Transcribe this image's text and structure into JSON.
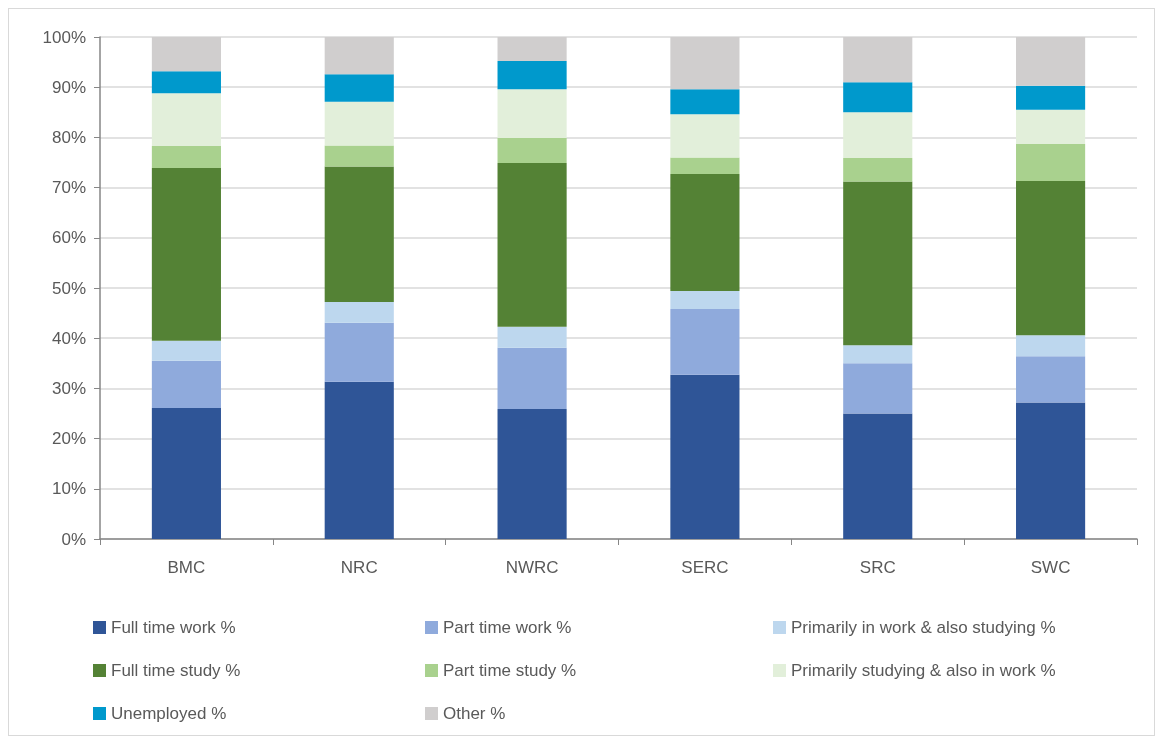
{
  "chart_data": {
    "type": "bar",
    "stacked": true,
    "categories": [
      "BMC",
      "NRC",
      "NWRC",
      "SERC",
      "SRC",
      "SWC"
    ],
    "series": [
      {
        "name": "Full time work %",
        "color": "#2f5597",
        "values": [
          26.1,
          31.3,
          25.9,
          32.7,
          25.0,
          27.2
        ]
      },
      {
        "name": "Part time work %",
        "color": "#8faadc",
        "values": [
          9.4,
          11.8,
          12.2,
          13.1,
          10.0,
          9.2
        ]
      },
      {
        "name": "Primarily in work & also studying %",
        "color": "#bdd7ee",
        "values": [
          4.0,
          4.1,
          4.2,
          3.6,
          3.6,
          4.2
        ]
      },
      {
        "name": "Full time study %",
        "color": "#548235",
        "values": [
          34.4,
          27.0,
          32.6,
          23.3,
          32.6,
          30.7
        ]
      },
      {
        "name": "Part time study %",
        "color": "#a9d18e",
        "values": [
          4.4,
          4.2,
          5.0,
          3.3,
          4.7,
          7.4
        ]
      },
      {
        "name": "Primarily studying & also in work %",
        "color": "#e2efda",
        "values": [
          10.5,
          8.7,
          9.7,
          8.6,
          9.1,
          6.8
        ]
      },
      {
        "name": "Unemployed %",
        "color": "#0099cc",
        "values": [
          4.4,
          5.5,
          5.6,
          5.0,
          6.0,
          4.8
        ]
      },
      {
        "name": "Other %",
        "color": "#d0cece",
        "values": [
          6.8,
          7.4,
          4.8,
          10.4,
          9.0,
          9.7
        ]
      }
    ],
    "ylim": [
      0,
      100
    ],
    "yticks": [
      {
        "value": 0,
        "label": "0%"
      },
      {
        "value": 10,
        "label": "10%"
      },
      {
        "value": 20,
        "label": "20%"
      },
      {
        "value": 30,
        "label": "30%"
      },
      {
        "value": 40,
        "label": "40%"
      },
      {
        "value": 50,
        "label": "50%"
      },
      {
        "value": 60,
        "label": "60%"
      },
      {
        "value": 70,
        "label": "70%"
      },
      {
        "value": 80,
        "label": "80%"
      },
      {
        "value": 90,
        "label": "90%"
      },
      {
        "value": 100,
        "label": "100%"
      }
    ],
    "grid": "y",
    "legend": "bottom"
  }
}
